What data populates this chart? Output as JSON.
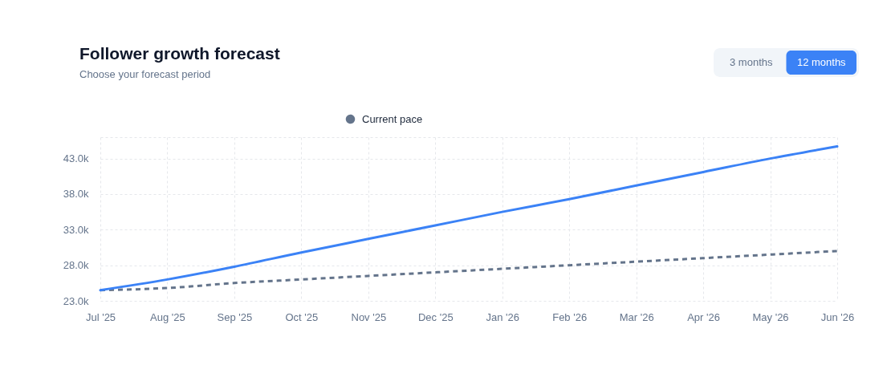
{
  "chart_data": {
    "type": "line",
    "title": "Follower growth forecast",
    "subtitle": "Choose your forecast period",
    "annotations": [
      "3 months",
      "12 months"
    ],
    "categories": [
      "Jul '25",
      "Aug '25",
      "Sep '25",
      "Oct '25",
      "Nov '25",
      "Dec '25",
      "Jan '26",
      "Feb '26",
      "Mar '26",
      "Apr '26",
      "May '26",
      "Jun '26"
    ],
    "series": [
      {
        "name": "Current pace",
        "color": "#64748b",
        "line_style": "dashed",
        "values": [
          24500,
          24800,
          25500,
          26000,
          26500,
          27000,
          27500,
          28000,
          28500,
          29000,
          29500,
          30000
        ]
      },
      {
        "color": "#3b82f6",
        "line_style": "solid",
        "values": [
          24500,
          26000,
          27800,
          29800,
          31700,
          33600,
          35500,
          37300,
          39200,
          41100,
          43000,
          44700
        ]
      }
    ],
    "ylim": [
      23000,
      46000
    ],
    "yticks": [
      {
        "value": 23000,
        "label": "23.0k"
      },
      {
        "value": 28000,
        "label": "28.0k"
      },
      {
        "value": 33000,
        "label": "33.0k"
      },
      {
        "value": 38000,
        "label": "38.0k"
      },
      {
        "value": 43000,
        "label": "43.0k"
      },
      {
        "value": 46000,
        "label": null
      }
    ],
    "grid": true,
    "legend": "top"
  }
}
